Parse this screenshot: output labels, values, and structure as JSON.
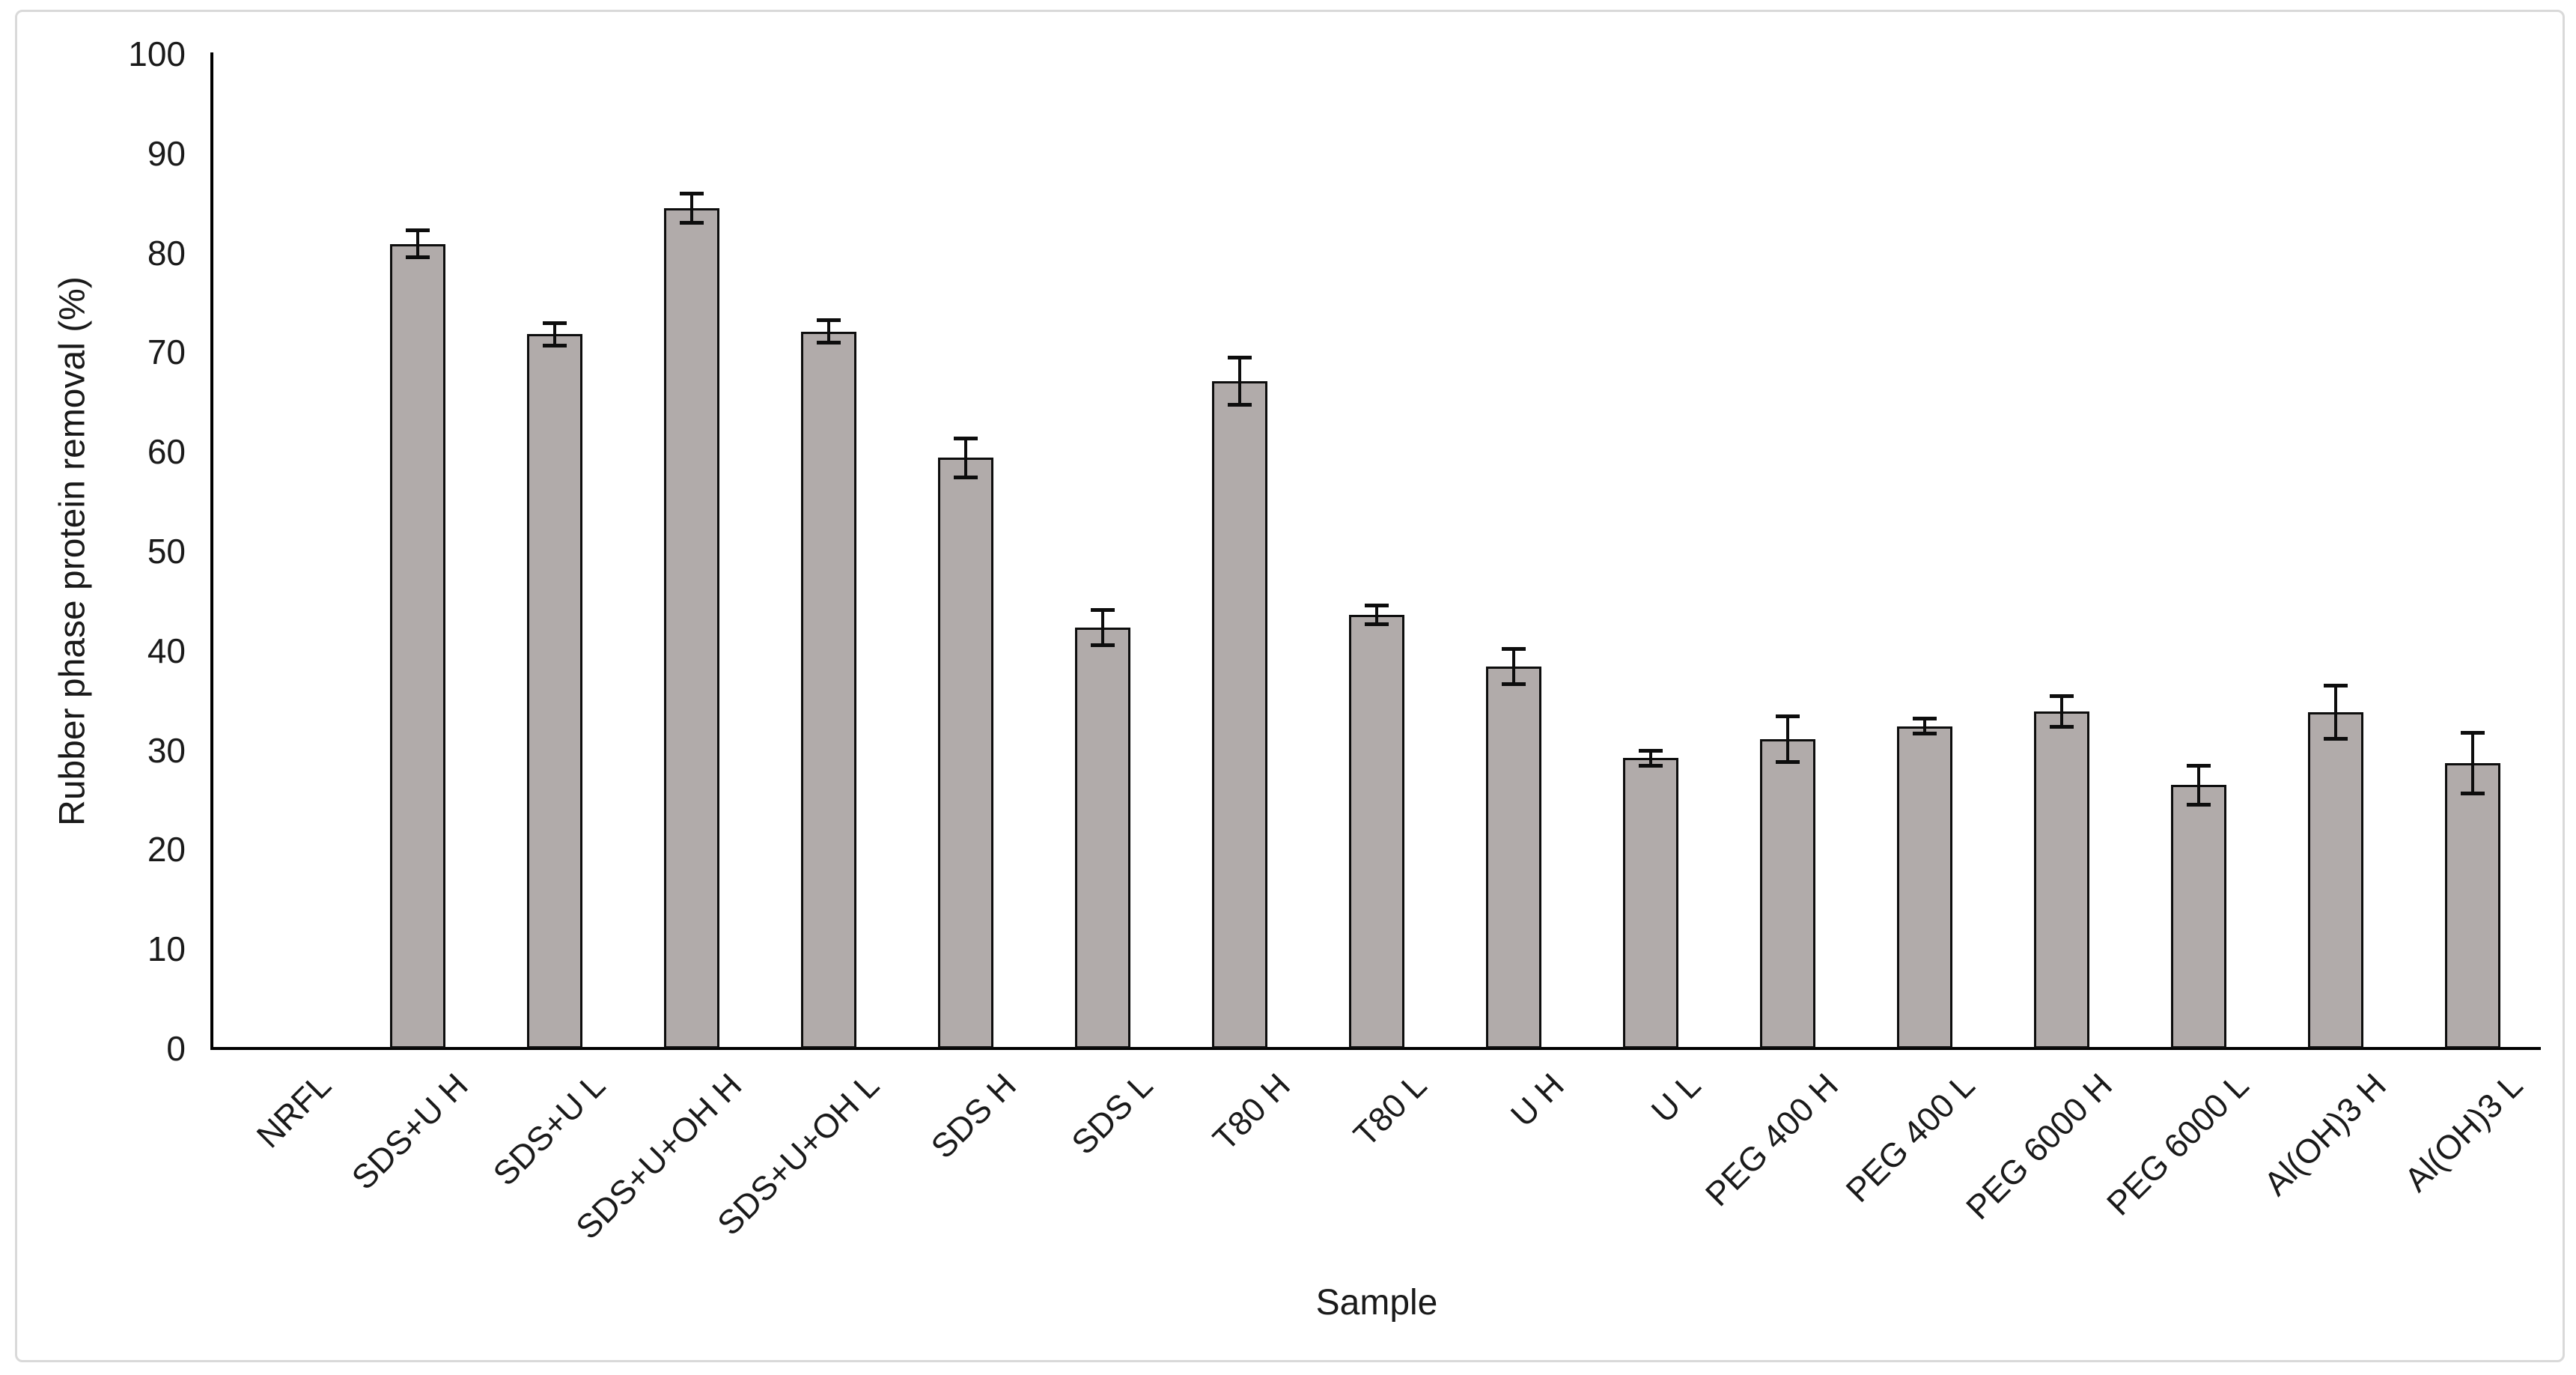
{
  "figure": {
    "background": "#ffffff",
    "border_color": "#d9d9d9",
    "bar_fill": "#b1abaa",
    "bar_outline": "#0d0d0d",
    "axis_color": "#000000",
    "text_color": "#1a1a1a"
  },
  "chart_data": {
    "type": "bar",
    "title": "",
    "xlabel": "Sample",
    "ylabel": "Rubber phase protein removal (%)",
    "ylim": [
      0,
      100
    ],
    "yticks": [
      0,
      10,
      20,
      30,
      40,
      50,
      60,
      70,
      80,
      90,
      100
    ],
    "grid": false,
    "legend": false,
    "error_bars": true,
    "categories": [
      "NRFL",
      "SDS+U H",
      "SDS+U L",
      "SDS+U+OH H",
      "SDS+U+OH L",
      "SDS H",
      "SDS L",
      "T80 H",
      "T80 L",
      "U H",
      "U L",
      "PEG 400 H",
      "PEG 400 L",
      "PEG 6000 H",
      "PEG 6000 L",
      "Al(OH)3 H",
      "Al(OH)3 L"
    ],
    "values": [
      0,
      80.9,
      71.8,
      84.5,
      72.1,
      59.4,
      42.3,
      67.1,
      43.6,
      38.4,
      29.2,
      31.1,
      32.4,
      33.9,
      26.5,
      33.8,
      28.7
    ],
    "errors": [
      0,
      1.4,
      1.2,
      1.5,
      1.2,
      2.0,
      1.8,
      2.4,
      1.0,
      1.8,
      0.8,
      2.3,
      0.8,
      1.6,
      2.0,
      2.7,
      3.1
    ]
  }
}
